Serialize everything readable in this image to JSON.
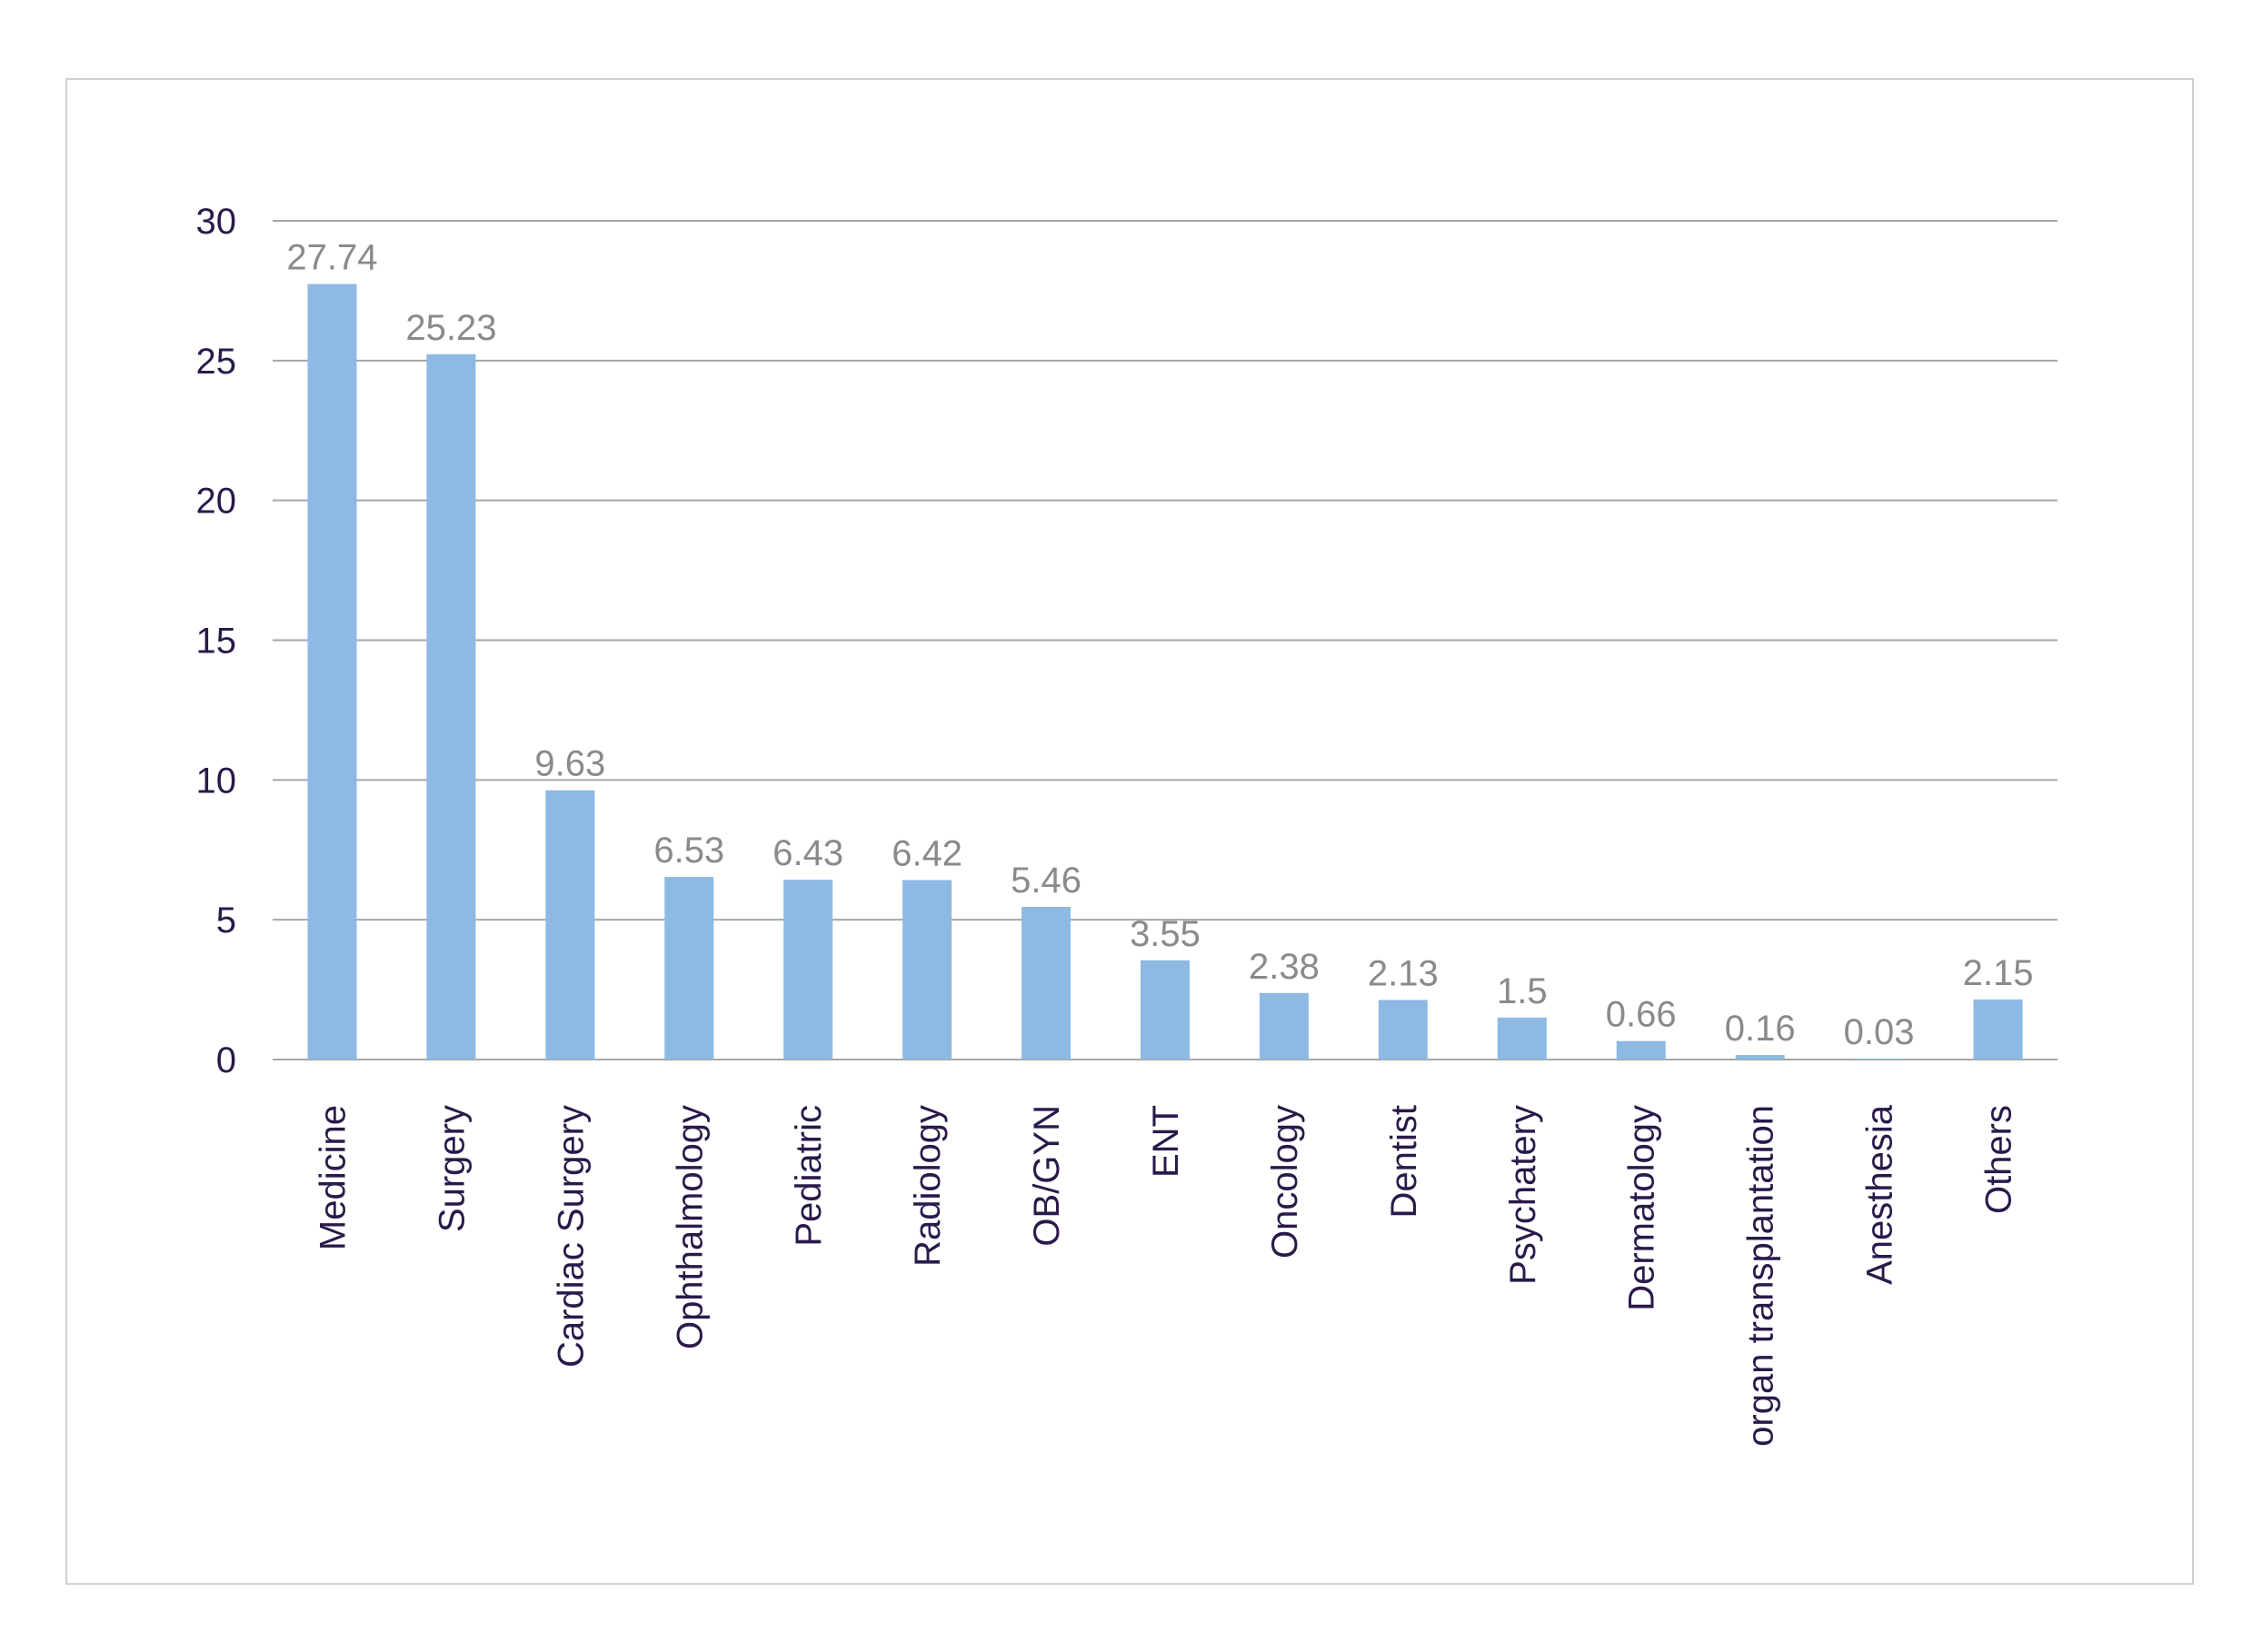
{
  "chart_data": {
    "type": "bar",
    "title": "",
    "xlabel": "",
    "ylabel": "",
    "ylim": [
      0,
      30
    ],
    "yticks": [
      0,
      5,
      10,
      15,
      20,
      25,
      30
    ],
    "grid": true,
    "legend": "none",
    "bar_color": "#8db9e3",
    "categories": [
      "Medicine",
      "Surgery",
      "Cardiac Surgery",
      "Ophthalmology",
      "Pediatric",
      "Radiology",
      "OB/GYN",
      "ENT",
      "Oncology",
      "Dentist",
      "Psychatery",
      "Dermatology",
      "organ transplantation",
      "Anesthesia",
      "Others"
    ],
    "values": [
      27.74,
      25.23,
      9.63,
      6.53,
      6.43,
      6.42,
      5.46,
      3.55,
      2.38,
      2.13,
      1.5,
      0.66,
      0.16,
      0.03,
      2.15
    ],
    "data_labels": [
      "27.74",
      "25.23",
      "9.63",
      "6.53",
      "6.43",
      "6.42",
      "5.46",
      "3.55",
      "2.38",
      "2.13",
      "1.5",
      "0.66",
      "0.16",
      "0.03",
      "2.15"
    ]
  }
}
